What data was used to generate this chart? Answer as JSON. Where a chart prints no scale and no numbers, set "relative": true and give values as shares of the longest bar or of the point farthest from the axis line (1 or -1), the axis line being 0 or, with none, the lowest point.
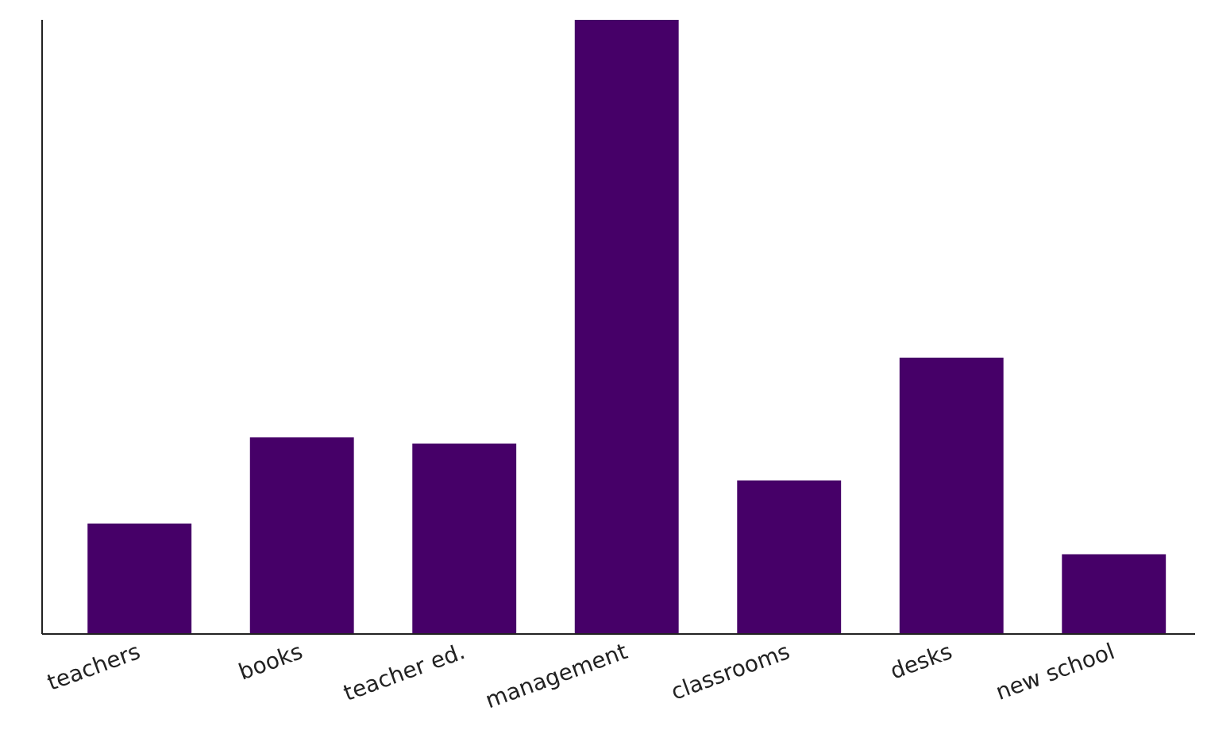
{
  "chart_data": {
    "type": "bar",
    "relative": true,
    "categories": [
      "teachers",
      "books",
      "teacher ed.",
      "management",
      "classrooms",
      "desks",
      "new school"
    ],
    "values": [
      0.18,
      0.32,
      0.31,
      1,
      0.25,
      0.45,
      0.13
    ],
    "color": "#460068"
  }
}
